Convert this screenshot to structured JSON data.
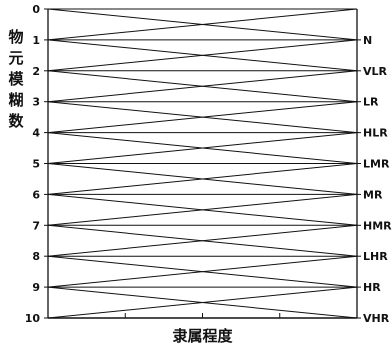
{
  "chart_data": {
    "type": "line",
    "ylabel": "物元模糊数",
    "xlabel": "隶属程度",
    "y_ticks": [
      "0",
      "1",
      "2",
      "3",
      "4",
      "5",
      "6",
      "7",
      "8",
      "9",
      "10"
    ],
    "ylim": [
      0,
      10
    ],
    "y_inverted": true,
    "right_labels": [
      {
        "value": 1,
        "label": "N"
      },
      {
        "value": 2,
        "label": "VLR"
      },
      {
        "value": 3,
        "label": "LR"
      },
      {
        "value": 4,
        "label": "HLR"
      },
      {
        "value": 5,
        "label": "LMR"
      },
      {
        "value": 6,
        "label": "MR"
      },
      {
        "value": 7,
        "label": "HMR"
      },
      {
        "value": 8,
        "label": "LHR"
      },
      {
        "value": 9,
        "label": "HR"
      },
      {
        "value": 10,
        "label": "VHR"
      }
    ],
    "segments": [
      {
        "from": 0,
        "to": 1
      },
      {
        "from": 1,
        "to": 0
      },
      {
        "from": 1,
        "to": 2
      },
      {
        "from": 2,
        "to": 1
      },
      {
        "from": 2,
        "to": 3
      },
      {
        "from": 3,
        "to": 2
      },
      {
        "from": 3,
        "to": 4
      },
      {
        "from": 4,
        "to": 3
      },
      {
        "from": 4,
        "to": 5
      },
      {
        "from": 5,
        "to": 4
      },
      {
        "from": 5,
        "to": 6
      },
      {
        "from": 6,
        "to": 5
      },
      {
        "from": 6,
        "to": 7
      },
      {
        "from": 7,
        "to": 6
      },
      {
        "from": 7,
        "to": 8
      },
      {
        "from": 8,
        "to": 7
      },
      {
        "from": 8,
        "to": 9
      },
      {
        "from": 9,
        "to": 8
      },
      {
        "from": 9,
        "to": 10
      },
      {
        "from": 10,
        "to": 9
      }
    ],
    "grid": false,
    "line_color": "#111111"
  }
}
